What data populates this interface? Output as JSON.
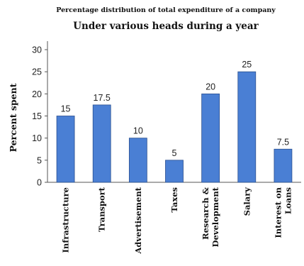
{
  "chart_data": {
    "type": "bar",
    "title": "Percentage distribution of total expenditure of a company",
    "subtitle": "Under various heads during a year",
    "ylabel": "Percent spent",
    "xlabel": "",
    "ylim": [
      0,
      30
    ],
    "yticks": [
      0,
      5,
      10,
      15,
      20,
      25,
      30
    ],
    "categories": [
      "Infrastructure",
      "Transport",
      "Advertisement",
      "Taxes",
      "Research & Development",
      "Salary",
      "Interest on Loans"
    ],
    "category_lines": [
      [
        "Infrastructure"
      ],
      [
        "Transport"
      ],
      [
        "Advertisement"
      ],
      [
        "Taxes"
      ],
      [
        "Research &",
        "Development"
      ],
      [
        "Salary"
      ],
      [
        "Interest on",
        "Loans"
      ]
    ],
    "values": [
      15,
      17.5,
      10,
      5,
      20,
      25,
      7.5
    ],
    "value_labels": [
      "15",
      "17.5",
      "10",
      "5",
      "20",
      "25",
      "7.5"
    ],
    "bar_color": "#4a7fd4",
    "bar_stroke": "#2a4f8f",
    "grid": false,
    "legend": "none"
  }
}
